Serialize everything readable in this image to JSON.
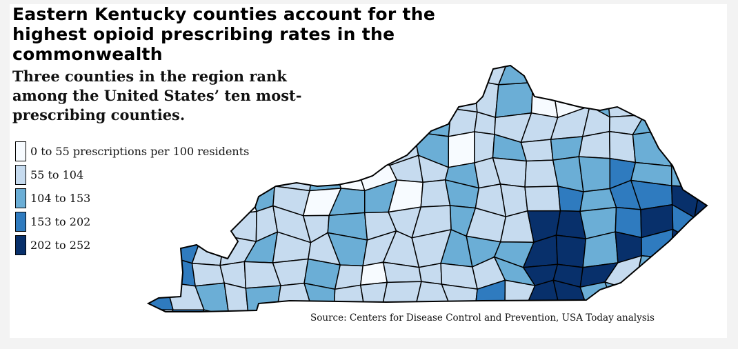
{
  "header": {
    "title": "Eastern Kentucky counties account for the highest opioid prescribing rates in the commonwealth",
    "subtitle": "Three counties in the region rank among the United States’ ten most-prescribing counties."
  },
  "legend": {
    "items": [
      {
        "label": "0 to 55 prescriptions per 100 residents",
        "color": "#f7fbff"
      },
      {
        "label": "55 to 104",
        "color": "#c6dbef"
      },
      {
        "label": "104 to 153",
        "color": "#6baed6"
      },
      {
        "label": "153 to 202",
        "color": "#2f7bbf"
      },
      {
        "label": "202 to 252",
        "color": "#08306b"
      }
    ]
  },
  "source": "Source: Centers for Disease Control and Prevention, USA Today analysis"
}
